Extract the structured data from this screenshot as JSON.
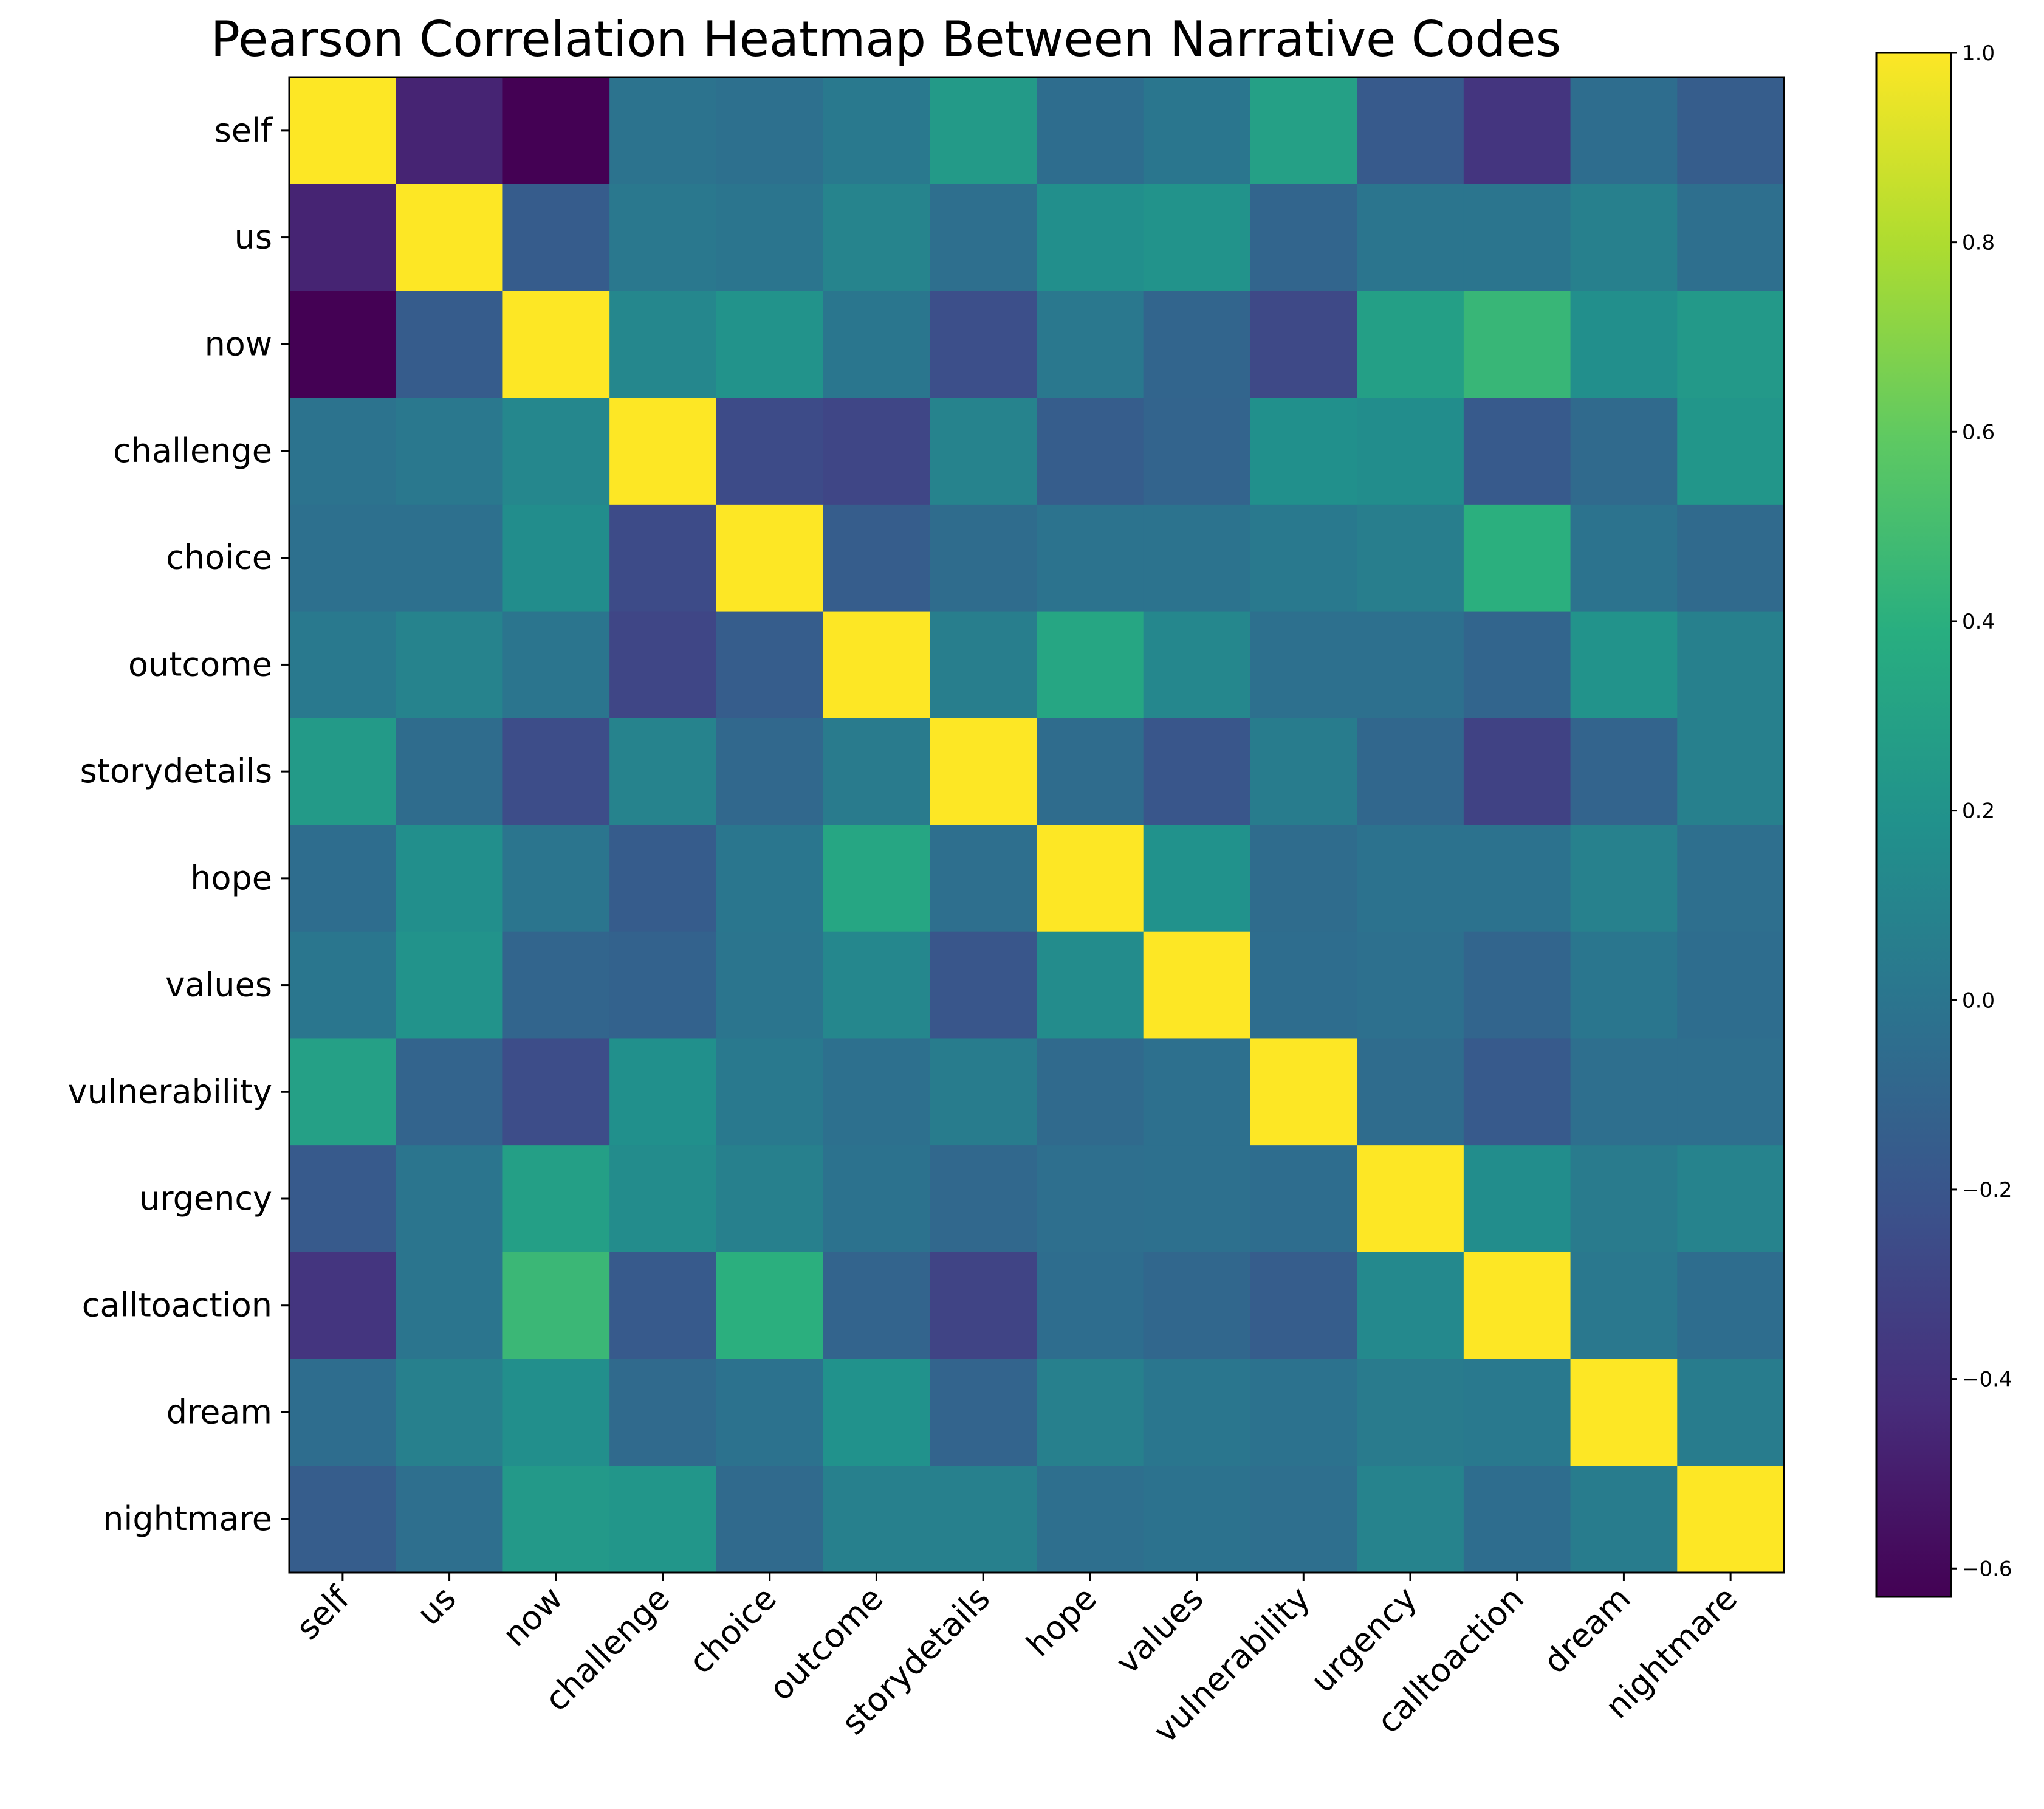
{
  "chart_data": {
    "type": "heatmap",
    "title": "Pearson Correlation Heatmap Between Narrative Codes",
    "xlabel": "",
    "ylabel": "",
    "labels": [
      "self",
      "us",
      "now",
      "challenge",
      "choice",
      "outcome",
      "storydetails",
      "hope",
      "values",
      "vulnerability",
      "urgency",
      "calltoaction",
      "dream",
      "nightmare"
    ],
    "matrix": [
      [
        1.0,
        -0.47,
        -0.63,
        -0.01,
        -0.03,
        0.03,
        0.25,
        -0.05,
        0.01,
        0.29,
        -0.17,
        -0.38,
        -0.05,
        -0.15
      ],
      [
        -0.47,
        1.0,
        -0.16,
        0.02,
        0.0,
        0.1,
        -0.04,
        0.17,
        0.2,
        -0.1,
        0.0,
        0.0,
        0.07,
        -0.04
      ],
      [
        -0.63,
        -0.16,
        1.0,
        0.12,
        0.2,
        0.01,
        -0.24,
        0.02,
        -0.1,
        -0.27,
        0.28,
        0.45,
        0.17,
        0.24
      ],
      [
        -0.01,
        0.02,
        0.12,
        1.0,
        -0.26,
        -0.29,
        0.09,
        -0.15,
        -0.11,
        0.18,
        0.16,
        -0.17,
        -0.07,
        0.22
      ],
      [
        -0.03,
        -0.03,
        0.16,
        -0.26,
        1.0,
        -0.15,
        -0.06,
        -0.01,
        -0.01,
        0.03,
        0.06,
        0.4,
        -0.01,
        -0.07
      ],
      [
        0.03,
        0.09,
        0.0,
        -0.29,
        -0.15,
        1.0,
        0.06,
        0.33,
        0.12,
        -0.03,
        -0.03,
        -0.1,
        0.2,
        0.07
      ],
      [
        0.25,
        -0.06,
        -0.25,
        0.09,
        -0.08,
        0.04,
        1.0,
        -0.06,
        -0.2,
        0.05,
        -0.09,
        -0.31,
        -0.11,
        0.07
      ],
      [
        -0.05,
        0.17,
        0.0,
        -0.16,
        0.01,
        0.33,
        -0.04,
        1.0,
        0.19,
        -0.06,
        -0.02,
        -0.02,
        0.08,
        -0.04
      ],
      [
        0.01,
        0.2,
        -0.1,
        -0.12,
        0.0,
        0.12,
        -0.2,
        0.15,
        1.0,
        -0.05,
        -0.03,
        -0.1,
        0.01,
        -0.05
      ],
      [
        0.29,
        -0.11,
        -0.25,
        0.18,
        0.03,
        -0.03,
        0.05,
        -0.07,
        -0.03,
        1.0,
        -0.06,
        -0.17,
        -0.04,
        -0.04
      ],
      [
        -0.17,
        0.0,
        0.28,
        0.15,
        0.07,
        -0.02,
        -0.08,
        -0.04,
        -0.03,
        -0.05,
        1.0,
        0.16,
        0.04,
        0.09
      ],
      [
        -0.38,
        0.0,
        0.46,
        -0.17,
        0.4,
        -0.11,
        -0.3,
        -0.05,
        -0.09,
        -0.15,
        0.13,
        1.0,
        0.02,
        -0.05
      ],
      [
        -0.05,
        0.07,
        0.17,
        -0.07,
        -0.02,
        0.19,
        -0.11,
        0.07,
        0.01,
        -0.02,
        0.04,
        0.03,
        1.0,
        0.05
      ],
      [
        -0.15,
        -0.04,
        0.24,
        0.22,
        -0.07,
        0.07,
        0.07,
        -0.04,
        -0.02,
        -0.04,
        0.09,
        -0.05,
        0.05,
        1.0
      ]
    ],
    "colormap": "viridis",
    "vmin": -0.63,
    "vmax": 1.0,
    "colorbar": {
      "ticks": [
        1.0,
        0.8,
        0.6,
        0.4,
        0.2,
        0.0,
        -0.2,
        -0.4,
        -0.6
      ],
      "tick_labels": [
        "1.0",
        "0.8",
        "0.6",
        "0.4",
        "0.2",
        "0.0",
        "−0.2",
        "−0.4",
        "−0.6"
      ]
    },
    "grid": false,
    "legend": "colorbar-right"
  }
}
